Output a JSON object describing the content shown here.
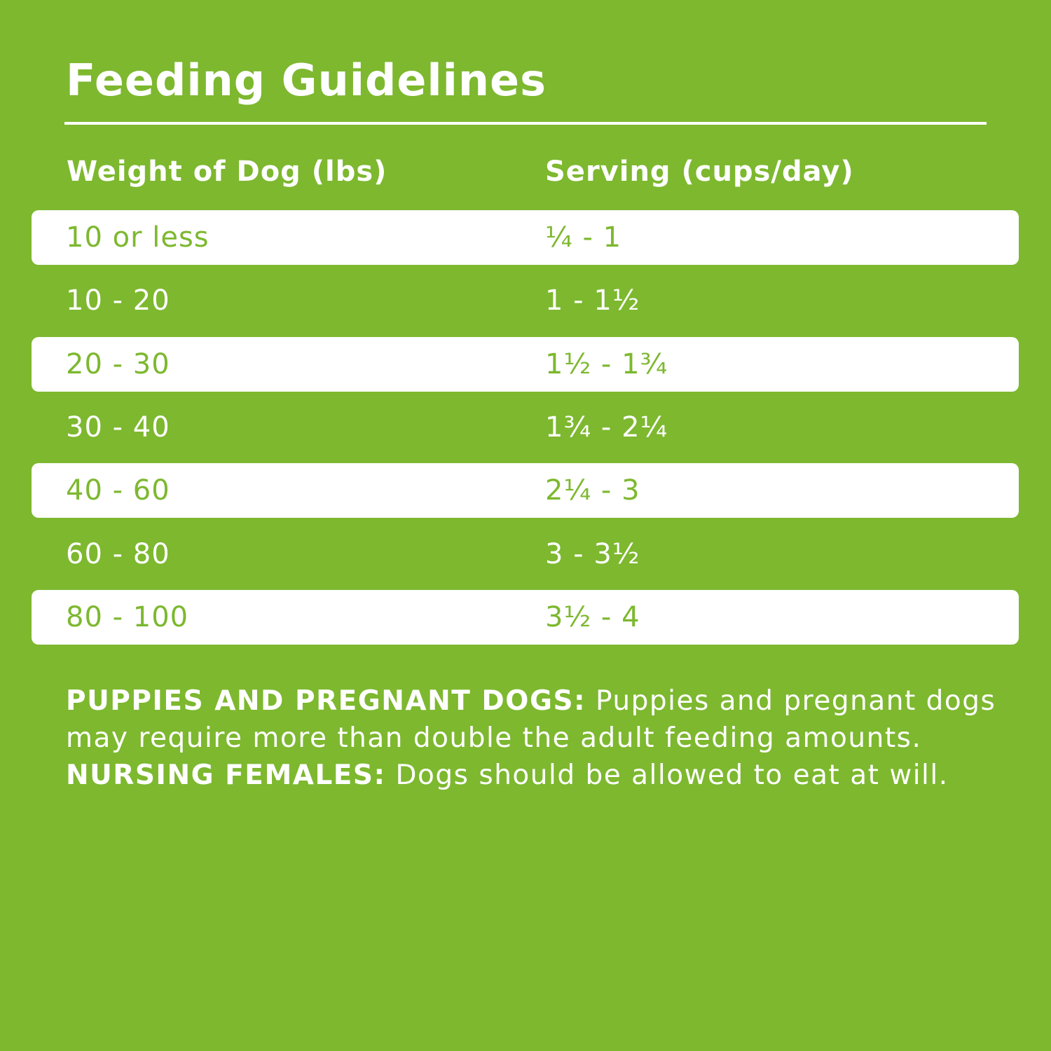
{
  "title": "Feeding Guidelines",
  "headers": {
    "weight": "Weight of Dog (lbs)",
    "serving": "Serving (cups/day)"
  },
  "rows": [
    {
      "weight": "10 or less",
      "serving": "¼ - 1"
    },
    {
      "weight": "10 - 20",
      "serving": "1 - 1½"
    },
    {
      "weight": "20 - 30",
      "serving": "1½ - 1¾"
    },
    {
      "weight": "30 - 40",
      "serving": "1¾ - 2¼"
    },
    {
      "weight": "40 - 60",
      "serving": "2¼ - 3"
    },
    {
      "weight": "60 - 80",
      "serving": "3 - 3½"
    },
    {
      "weight": "80 - 100",
      "serving": "3½ - 4"
    }
  ],
  "note": {
    "label1": "PUPPIES AND PREGNANT DOGS:",
    "text1": " Puppies and pregnant dogs may require more than double the adult feeding amounts. ",
    "label2": "NURSING FEMALES:",
    "text2": " Dogs should be allowed to eat at will."
  },
  "colors": {
    "background": "#7db82f",
    "row_highlight": "#ffffff"
  }
}
